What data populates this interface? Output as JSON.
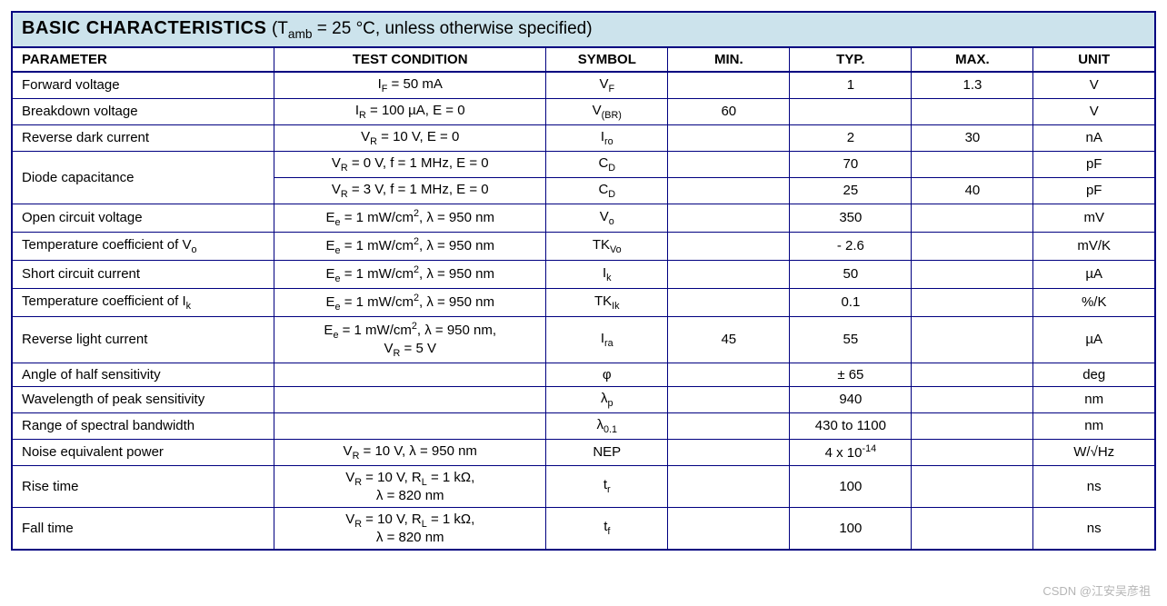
{
  "title_main": "BASIC CHARACTERISTICS",
  "title_cond_prefix": " (T",
  "title_cond_sub": "amb",
  "title_cond_suffix": " = 25 °C, unless otherwise specified)",
  "headers": {
    "parameter": "PARAMETER",
    "test_condition": "TEST CONDITION",
    "symbol": "SYMBOL",
    "min": "MIN.",
    "typ": "TYP.",
    "max": "MAX.",
    "unit": "UNIT"
  },
  "rows": {
    "r0": {
      "param": "Forward voltage",
      "cond_html": "I<sub>F</sub> = 50 mA",
      "sym_html": "V<sub>F</sub>",
      "min": "",
      "typ": "1",
      "max": "1.3",
      "unit": "V"
    },
    "r1": {
      "param": "Breakdown voltage",
      "cond_html": "I<sub>R</sub> = 100 µA, E = 0",
      "sym_html": "V<sub>(BR)</sub>",
      "min": "60",
      "typ": "",
      "max": "",
      "unit": "V"
    },
    "r2": {
      "param": "Reverse dark current",
      "cond_html": "V<sub>R</sub> = 10 V, E = 0",
      "sym_html": "I<sub>ro</sub>",
      "min": "",
      "typ": "2",
      "max": "30",
      "unit": "nA"
    },
    "r3a": {
      "param": "Diode capacitance",
      "cond_html": "V<sub>R</sub> = 0 V, f = 1 MHz, E = 0",
      "sym_html": "C<sub>D</sub>",
      "min": "",
      "typ": "70",
      "max": "",
      "unit": "pF"
    },
    "r3b": {
      "cond_html": "V<sub>R</sub> = 3 V, f = 1 MHz, E = 0",
      "sym_html": "C<sub>D</sub>",
      "min": "",
      "typ": "25",
      "max": "40",
      "unit": "pF"
    },
    "r4": {
      "param": "Open circuit voltage",
      "cond_html": "E<sub>e</sub> = 1 mW/cm<sup>2</sup>, λ = 950 nm",
      "sym_html": "V<sub>o</sub>",
      "min": "",
      "typ": "350",
      "max": "",
      "unit": "mV"
    },
    "r5": {
      "param_html": "Temperature coefficient of V<sub>o</sub>",
      "cond_html": "E<sub>e</sub> = 1 mW/cm<sup>2</sup>, λ = 950 nm",
      "sym_html": "TK<sub>Vo</sub>",
      "min": "",
      "typ": "- 2.6",
      "max": "",
      "unit": "mV/K"
    },
    "r6": {
      "param": "Short circuit current",
      "cond_html": "E<sub>e</sub> = 1 mW/cm<sup>2</sup>, λ = 950 nm",
      "sym_html": "I<sub>k</sub>",
      "min": "",
      "typ": "50",
      "max": "",
      "unit": "µA"
    },
    "r7": {
      "param_html": "Temperature coefficient of I<sub>k</sub>",
      "cond_html": "E<sub>e</sub> = 1 mW/cm<sup>2</sup>, λ = 950 nm",
      "sym_html": "TK<sub>Ik</sub>",
      "min": "",
      "typ": "0.1",
      "max": "",
      "unit": "%/K"
    },
    "r8": {
      "param": "Reverse light current",
      "cond_html": "E<sub>e</sub> = 1 mW/cm<sup>2</sup>, λ = 950 nm,<br>V<sub>R</sub> = 5 V",
      "sym_html": "I<sub>ra</sub>",
      "min": "45",
      "typ": "55",
      "max": "",
      "unit": "µA"
    },
    "r9": {
      "param": "Angle of half sensitivity",
      "cond_html": "",
      "sym_html": "φ",
      "min": "",
      "typ": "± 65",
      "max": "",
      "unit": "deg"
    },
    "r10": {
      "param": "Wavelength of peak sensitivity",
      "cond_html": "",
      "sym_html": "λ<sub>p</sub>",
      "min": "",
      "typ": "940",
      "max": "",
      "unit": "nm"
    },
    "r11": {
      "param": "Range of spectral bandwidth",
      "cond_html": "",
      "sym_html": "λ<sub>0.1</sub>",
      "min": "",
      "typ": "430 to 1100",
      "max": "",
      "unit": "nm"
    },
    "r12": {
      "param": "Noise equivalent power",
      "cond_html": "V<sub>R</sub> = 10 V, λ = 950 nm",
      "sym_html": "NEP",
      "min": "",
      "typ_html": "4 x 10<sup>-14</sup>",
      "max": "",
      "unit": "W/√Hz"
    },
    "r13": {
      "param": "Rise time",
      "cond_html": "V<sub>R</sub> = 10 V, R<sub>L</sub> = 1 kΩ,<br>λ = 820 nm",
      "sym_html": "t<sub>r</sub>",
      "min": "",
      "typ": "100",
      "max": "",
      "unit": "ns"
    },
    "r14": {
      "param": "Fall time",
      "cond_html": "V<sub>R</sub> = 10 V, R<sub>L</sub> = 1 kΩ,<br>λ = 820 nm",
      "sym_html": "t<sub>f</sub>",
      "min": "",
      "typ": "100",
      "max": "",
      "unit": "ns"
    }
  },
  "watermark": "CSDN @江安吴彦祖",
  "style": {
    "border_color": "#000080",
    "header_bg": "#cce3ec",
    "font_size_body": 15,
    "font_size_title": 20
  }
}
